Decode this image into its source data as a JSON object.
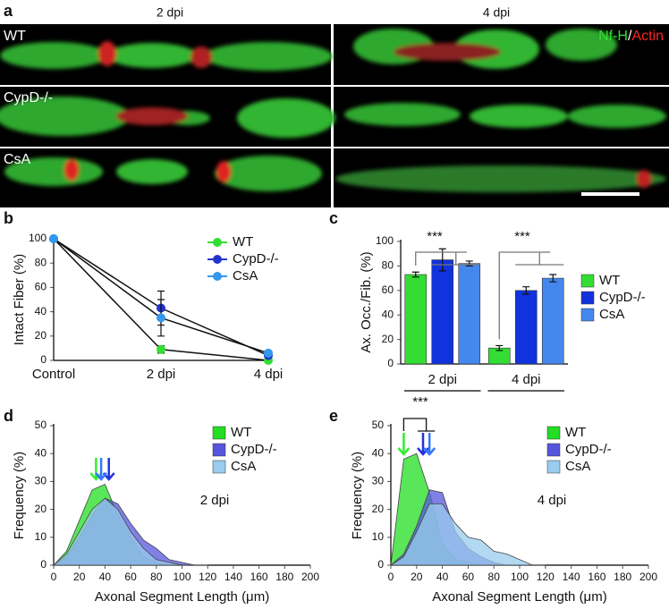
{
  "panel_a": {
    "label": "a",
    "columns": [
      "2 dpi",
      "4 dpi"
    ],
    "rows": [
      "WT",
      "CypD-/-",
      "CsA"
    ],
    "legend": [
      {
        "text": "Nf-H",
        "color": "#33dd33"
      },
      {
        "text": "/",
        "color": "#ffffff"
      },
      {
        "text": "Actin",
        "color": "#ff2222"
      }
    ]
  },
  "chart_data": [
    {
      "type": "line",
      "label": "b",
      "y_label": "Intact Fiber (%)",
      "categories": [
        "Control",
        "2 dpi",
        "4 dpi"
      ],
      "ylim": [
        0,
        100
      ],
      "yticks": [
        0,
        20,
        40,
        60,
        80,
        100
      ],
      "series": [
        {
          "name": "WT",
          "color": "#33dd33",
          "values": [
            100,
            9,
            0
          ],
          "errors": [
            null,
            3,
            null
          ]
        },
        {
          "name": "CypD-/-",
          "color": "#2233cc",
          "values": [
            100,
            43,
            4
          ],
          "errors": [
            null,
            14,
            null
          ]
        },
        {
          "name": "CsA",
          "color": "#3399ee",
          "values": [
            100,
            35,
            6
          ],
          "errors": [
            null,
            15,
            null
          ]
        }
      ]
    },
    {
      "type": "bar",
      "label": "c",
      "y_label": "Ax. Occ./Fib. (%)",
      "categories": [
        "2 dpi",
        "4 dpi"
      ],
      "ylim": [
        0,
        100
      ],
      "yticks": [
        0,
        20,
        40,
        60,
        80,
        100
      ],
      "annotations": [
        "***",
        "***"
      ],
      "series": [
        {
          "name": "WT",
          "color": "#33dd33",
          "values": [
            73,
            13
          ],
          "errors": [
            2,
            2
          ]
        },
        {
          "name": "CypD-/-",
          "color": "#1133dd",
          "values": [
            85,
            60
          ],
          "errors": [
            9,
            3
          ]
        },
        {
          "name": "CsA",
          "color": "#4488ee",
          "values": [
            82,
            70
          ],
          "errors": [
            2,
            3
          ]
        }
      ]
    },
    {
      "type": "area",
      "label": "d",
      "y_label": "Frequency (%)",
      "x_label": "Axonal Segment Length  (μm)",
      "annotations": [
        "2 dpi"
      ],
      "xlim": [
        0,
        200
      ],
      "xticks": [
        0,
        20,
        40,
        60,
        80,
        100,
        120,
        140,
        160,
        180,
        200
      ],
      "ylim": [
        0,
        50
      ],
      "yticks": [
        0,
        10,
        20,
        30,
        40,
        50
      ],
      "x": [
        0,
        10,
        20,
        30,
        40,
        50,
        60,
        70,
        80,
        90,
        100,
        110,
        120
      ],
      "series": [
        {
          "name": "WT",
          "color": "#22dd22",
          "values": [
            0,
            5,
            16,
            27,
            29,
            18,
            10,
            3,
            1,
            0,
            0,
            0,
            0
          ],
          "mean": 33
        },
        {
          "name": "CypD-/-",
          "color": "#5555dd",
          "values": [
            0,
            3,
            10,
            18,
            24,
            22,
            15,
            9,
            6,
            2,
            1,
            0,
            0
          ],
          "mean": 43
        },
        {
          "name": "CsA",
          "color": "#99ccee",
          "values": [
            0,
            4,
            12,
            20,
            24,
            20,
            12,
            6,
            2,
            1,
            0,
            0,
            0
          ],
          "mean": 37
        }
      ]
    },
    {
      "type": "area",
      "label": "e",
      "y_label": "Frequency (%)",
      "x_label": "Axonal Segment Length  (μm)",
      "annotations": [
        "4 dpi",
        "***"
      ],
      "xlim": [
        0,
        200
      ],
      "xticks": [
        0,
        20,
        40,
        60,
        80,
        100,
        120,
        140,
        160,
        180,
        200
      ],
      "ylim": [
        0,
        50
      ],
      "yticks": [
        0,
        10,
        20,
        30,
        40,
        50
      ],
      "x": [
        0,
        10,
        20,
        30,
        40,
        50,
        60,
        70,
        80,
        90,
        100,
        110,
        120
      ],
      "series": [
        {
          "name": "WT",
          "color": "#22dd22",
          "values": [
            0,
            38,
            40,
            26,
            8,
            2,
            1,
            0,
            0,
            0,
            0,
            0,
            0
          ],
          "mean": 10
        },
        {
          "name": "CypD-/-",
          "color": "#5555dd",
          "values": [
            0,
            4,
            14,
            27,
            26,
            12,
            6,
            3,
            1,
            0,
            0,
            0,
            0
          ],
          "mean": 25
        },
        {
          "name": "CsA",
          "color": "#99ccee",
          "values": [
            0,
            3,
            12,
            22,
            22,
            15,
            10,
            9,
            5,
            4,
            2,
            0,
            0
          ],
          "mean": 30
        }
      ]
    }
  ]
}
